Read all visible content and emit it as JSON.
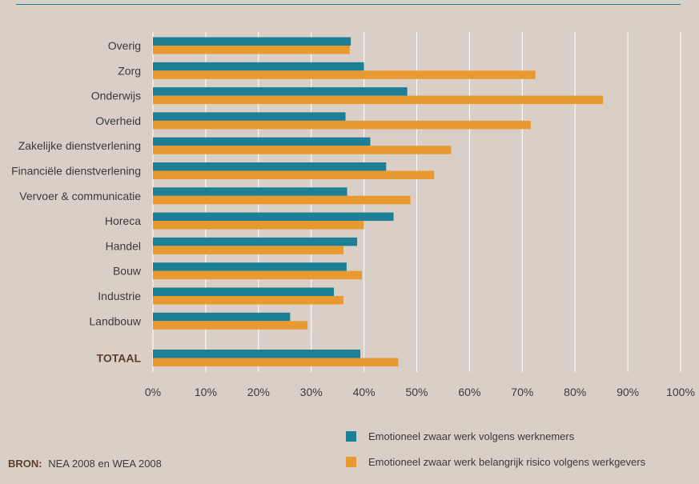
{
  "chart_data": {
    "type": "bar",
    "orientation": "horizontal",
    "categories": [
      "Overig",
      "Zorg",
      "Onderwijs",
      "Overheid",
      "Zakelijke dienstverlening",
      "Financiële dienstverlening",
      "Vervoer & communicatie",
      "Horeca",
      "Handel",
      "Bouw",
      "Industrie",
      "Landbouw",
      "TOTAAL"
    ],
    "series": [
      {
        "name": "Emotioneel zwaar werk volgens werknemers",
        "color": "#1c7f96",
        "values": [
          37.5,
          40.0,
          48.2,
          36.5,
          41.2,
          44.2,
          36.8,
          45.6,
          38.7,
          36.7,
          34.3,
          26.0,
          39.3
        ]
      },
      {
        "name": "Emotioneel zwaar werk belangrijk risico volgens werkgevers",
        "color": "#e8992f",
        "values": [
          37.3,
          72.5,
          85.3,
          71.6,
          56.5,
          53.3,
          48.8,
          40.0,
          36.1,
          39.6,
          36.1,
          29.3,
          46.5
        ]
      }
    ],
    "xlim": [
      0,
      100
    ],
    "xticks": [
      "0%",
      "10%",
      "20%",
      "30%",
      "40%",
      "50%",
      "60%",
      "70%",
      "80%",
      "90%",
      "100%"
    ],
    "grid": true,
    "legend_position": "bottom-right",
    "emphasized_category": "TOTAAL"
  },
  "source": {
    "label": "BRON:",
    "text": "NEA 2008 en WEA 2008"
  },
  "colors": {
    "background": "#d9cfc6",
    "grid": "#ffffff",
    "rule": "#1c7f96"
  }
}
